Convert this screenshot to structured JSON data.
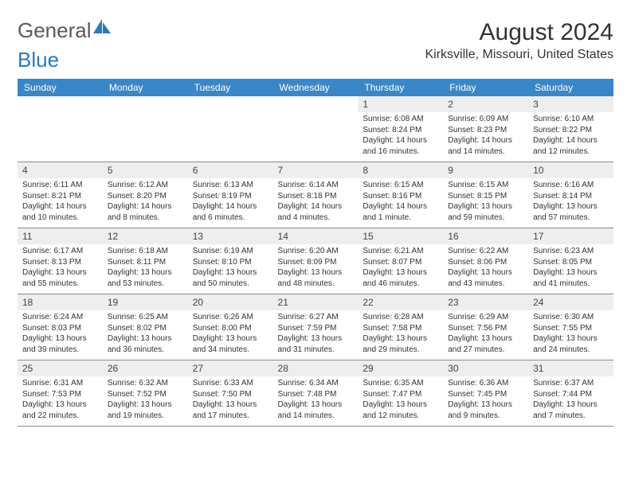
{
  "logo": {
    "general": "General",
    "blue": "Blue"
  },
  "colors": {
    "header_bg": "#3b86c6",
    "header_text": "#ffffff",
    "daynum_bg": "#eeeeee",
    "border": "#8a8a8a",
    "logo_blue": "#2a7ac0",
    "logo_icon": "#2a7ac0"
  },
  "title": "August 2024",
  "location": "Kirksville, Missouri, United States",
  "weekdays": [
    "Sunday",
    "Monday",
    "Tuesday",
    "Wednesday",
    "Thursday",
    "Friday",
    "Saturday"
  ],
  "layout": {
    "columns": 7,
    "rows": 5,
    "cell_width_pct": 14.285
  },
  "typography": {
    "month_title_fontsize": 30,
    "location_fontsize": 16,
    "weekday_fontsize": 12,
    "daynum_fontsize": 12,
    "body_fontsize": 10
  },
  "weeks": [
    [
      {
        "n": "",
        "sr": "",
        "ss": "",
        "dl": ""
      },
      {
        "n": "",
        "sr": "",
        "ss": "",
        "dl": ""
      },
      {
        "n": "",
        "sr": "",
        "ss": "",
        "dl": ""
      },
      {
        "n": "",
        "sr": "",
        "ss": "",
        "dl": ""
      },
      {
        "n": "1",
        "sr": "Sunrise: 6:08 AM",
        "ss": "Sunset: 8:24 PM",
        "dl": "Daylight: 14 hours and 16 minutes."
      },
      {
        "n": "2",
        "sr": "Sunrise: 6:09 AM",
        "ss": "Sunset: 8:23 PM",
        "dl": "Daylight: 14 hours and 14 minutes."
      },
      {
        "n": "3",
        "sr": "Sunrise: 6:10 AM",
        "ss": "Sunset: 8:22 PM",
        "dl": "Daylight: 14 hours and 12 minutes."
      }
    ],
    [
      {
        "n": "4",
        "sr": "Sunrise: 6:11 AM",
        "ss": "Sunset: 8:21 PM",
        "dl": "Daylight: 14 hours and 10 minutes."
      },
      {
        "n": "5",
        "sr": "Sunrise: 6:12 AM",
        "ss": "Sunset: 8:20 PM",
        "dl": "Daylight: 14 hours and 8 minutes."
      },
      {
        "n": "6",
        "sr": "Sunrise: 6:13 AM",
        "ss": "Sunset: 8:19 PM",
        "dl": "Daylight: 14 hours and 6 minutes."
      },
      {
        "n": "7",
        "sr": "Sunrise: 6:14 AM",
        "ss": "Sunset: 8:18 PM",
        "dl": "Daylight: 14 hours and 4 minutes."
      },
      {
        "n": "8",
        "sr": "Sunrise: 6:15 AM",
        "ss": "Sunset: 8:16 PM",
        "dl": "Daylight: 14 hours and 1 minute."
      },
      {
        "n": "9",
        "sr": "Sunrise: 6:15 AM",
        "ss": "Sunset: 8:15 PM",
        "dl": "Daylight: 13 hours and 59 minutes."
      },
      {
        "n": "10",
        "sr": "Sunrise: 6:16 AM",
        "ss": "Sunset: 8:14 PM",
        "dl": "Daylight: 13 hours and 57 minutes."
      }
    ],
    [
      {
        "n": "11",
        "sr": "Sunrise: 6:17 AM",
        "ss": "Sunset: 8:13 PM",
        "dl": "Daylight: 13 hours and 55 minutes."
      },
      {
        "n": "12",
        "sr": "Sunrise: 6:18 AM",
        "ss": "Sunset: 8:11 PM",
        "dl": "Daylight: 13 hours and 53 minutes."
      },
      {
        "n": "13",
        "sr": "Sunrise: 6:19 AM",
        "ss": "Sunset: 8:10 PM",
        "dl": "Daylight: 13 hours and 50 minutes."
      },
      {
        "n": "14",
        "sr": "Sunrise: 6:20 AM",
        "ss": "Sunset: 8:09 PM",
        "dl": "Daylight: 13 hours and 48 minutes."
      },
      {
        "n": "15",
        "sr": "Sunrise: 6:21 AM",
        "ss": "Sunset: 8:07 PM",
        "dl": "Daylight: 13 hours and 46 minutes."
      },
      {
        "n": "16",
        "sr": "Sunrise: 6:22 AM",
        "ss": "Sunset: 8:06 PM",
        "dl": "Daylight: 13 hours and 43 minutes."
      },
      {
        "n": "17",
        "sr": "Sunrise: 6:23 AM",
        "ss": "Sunset: 8:05 PM",
        "dl": "Daylight: 13 hours and 41 minutes."
      }
    ],
    [
      {
        "n": "18",
        "sr": "Sunrise: 6:24 AM",
        "ss": "Sunset: 8:03 PM",
        "dl": "Daylight: 13 hours and 39 minutes."
      },
      {
        "n": "19",
        "sr": "Sunrise: 6:25 AM",
        "ss": "Sunset: 8:02 PM",
        "dl": "Daylight: 13 hours and 36 minutes."
      },
      {
        "n": "20",
        "sr": "Sunrise: 6:26 AM",
        "ss": "Sunset: 8:00 PM",
        "dl": "Daylight: 13 hours and 34 minutes."
      },
      {
        "n": "21",
        "sr": "Sunrise: 6:27 AM",
        "ss": "Sunset: 7:59 PM",
        "dl": "Daylight: 13 hours and 31 minutes."
      },
      {
        "n": "22",
        "sr": "Sunrise: 6:28 AM",
        "ss": "Sunset: 7:58 PM",
        "dl": "Daylight: 13 hours and 29 minutes."
      },
      {
        "n": "23",
        "sr": "Sunrise: 6:29 AM",
        "ss": "Sunset: 7:56 PM",
        "dl": "Daylight: 13 hours and 27 minutes."
      },
      {
        "n": "24",
        "sr": "Sunrise: 6:30 AM",
        "ss": "Sunset: 7:55 PM",
        "dl": "Daylight: 13 hours and 24 minutes."
      }
    ],
    [
      {
        "n": "25",
        "sr": "Sunrise: 6:31 AM",
        "ss": "Sunset: 7:53 PM",
        "dl": "Daylight: 13 hours and 22 minutes."
      },
      {
        "n": "26",
        "sr": "Sunrise: 6:32 AM",
        "ss": "Sunset: 7:52 PM",
        "dl": "Daylight: 13 hours and 19 minutes."
      },
      {
        "n": "27",
        "sr": "Sunrise: 6:33 AM",
        "ss": "Sunset: 7:50 PM",
        "dl": "Daylight: 13 hours and 17 minutes."
      },
      {
        "n": "28",
        "sr": "Sunrise: 6:34 AM",
        "ss": "Sunset: 7:48 PM",
        "dl": "Daylight: 13 hours and 14 minutes."
      },
      {
        "n": "29",
        "sr": "Sunrise: 6:35 AM",
        "ss": "Sunset: 7:47 PM",
        "dl": "Daylight: 13 hours and 12 minutes."
      },
      {
        "n": "30",
        "sr": "Sunrise: 6:36 AM",
        "ss": "Sunset: 7:45 PM",
        "dl": "Daylight: 13 hours and 9 minutes."
      },
      {
        "n": "31",
        "sr": "Sunrise: 6:37 AM",
        "ss": "Sunset: 7:44 PM",
        "dl": "Daylight: 13 hours and 7 minutes."
      }
    ]
  ]
}
